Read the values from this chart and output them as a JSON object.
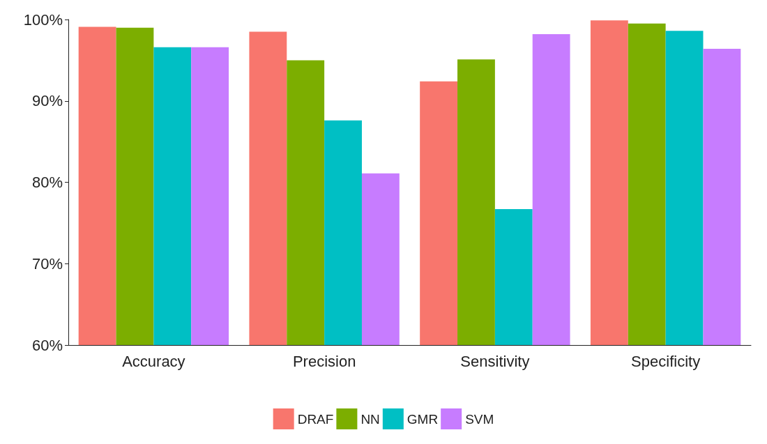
{
  "chart_data": {
    "type": "bar",
    "categories": [
      "Accuracy",
      "Precision",
      "Sensitivity",
      "Specificity"
    ],
    "series": [
      {
        "name": "DRAF",
        "color": "#f8766d",
        "values": [
          99.1,
          98.5,
          92.4,
          99.9
        ]
      },
      {
        "name": "NN",
        "color": "#7cae00",
        "values": [
          99.0,
          95.0,
          95.1,
          99.5
        ]
      },
      {
        "name": "GMR",
        "color": "#00bfc4",
        "values": [
          96.6,
          87.6,
          76.7,
          98.6
        ]
      },
      {
        "name": "SVM",
        "color": "#c77cff",
        "values": [
          96.6,
          81.1,
          98.2,
          96.4
        ]
      }
    ],
    "ylim": [
      60,
      100
    ],
    "yticks": [
      {
        "value": 60,
        "label": "60%"
      },
      {
        "value": 70,
        "label": "70%"
      },
      {
        "value": 80,
        "label": "80%"
      },
      {
        "value": 90,
        "label": "90%"
      },
      {
        "value": 100,
        "label": "100%"
      }
    ],
    "grid": false,
    "legend": "bottom"
  }
}
